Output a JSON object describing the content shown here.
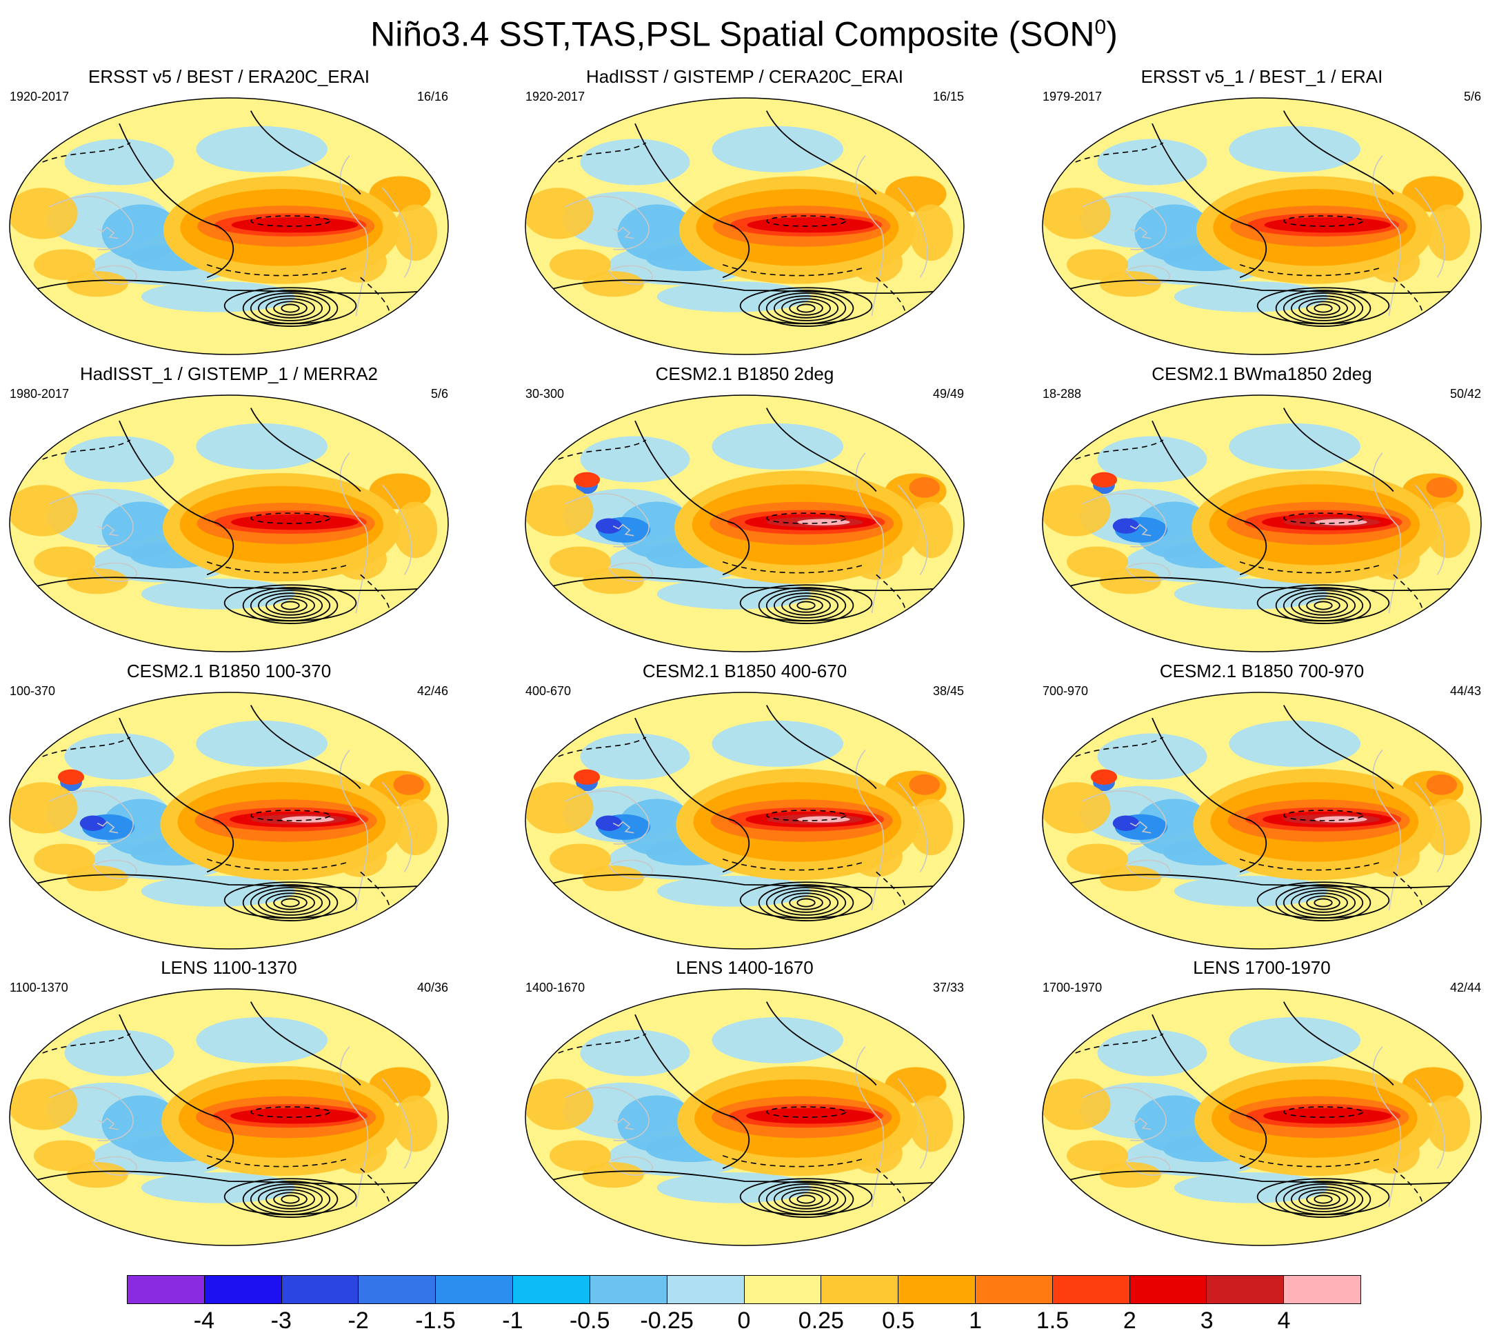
{
  "title": {
    "main": "Niño3.4 SST,TAS,PSL Spatial Composite (SON",
    "sup": "0",
    "close": ")"
  },
  "panels": [
    {
      "title": "ERSST v5 / BEST / ERA20C_ERAI",
      "years": "1920-2017",
      "count": "16/16",
      "strength": 0.75
    },
    {
      "title": "HadISST / GISTEMP / CERA20C_ERAI",
      "years": "1920-2017",
      "count": "16/15",
      "strength": 0.75
    },
    {
      "title": "ERSST v5_1 / BEST_1 / ERAI",
      "years": "1979-2017",
      "count": "5/6",
      "strength": 0.75
    },
    {
      "title": "HadISST_1 / GISTEMP_1 / MERRA2",
      "years": "1980-2017",
      "count": "5/6",
      "strength": 0.78
    },
    {
      "title": "CESM2.1 B1850 2deg",
      "years": "30-300",
      "count": "49/49",
      "strength": 1.0
    },
    {
      "title": "CESM2.1 BWma1850 2deg",
      "years": "18-288",
      "count": "50/42",
      "strength": 1.0
    },
    {
      "title": "CESM2.1 B1850 100-370",
      "years": "100-370",
      "count": "42/46",
      "strength": 0.92
    },
    {
      "title": "CESM2.1 B1850 400-670",
      "years": "400-670",
      "count": "38/45",
      "strength": 0.92
    },
    {
      "title": "CESM2.1 B1850 700-970",
      "years": "700-970",
      "count": "44/43",
      "strength": 0.92
    },
    {
      "title": "LENS 1100-1370",
      "years": "1100-1370",
      "count": "40/36",
      "strength": 0.85
    },
    {
      "title": "LENS 1400-1670",
      "years": "1400-1670",
      "count": "37/33",
      "strength": 0.85
    },
    {
      "title": "LENS 1700-1970",
      "years": "1700-1970",
      "count": "42/44",
      "strength": 0.85
    }
  ],
  "colorbar": {
    "colors": [
      "#8a2be2",
      "#1c10f0",
      "#2a45e0",
      "#3375e8",
      "#2b8ff0",
      "#0bbcf6",
      "#6cc3f0",
      "#aedff3",
      "#fff48a",
      "#fec832",
      "#ffa700",
      "#ff7a10",
      "#ff3e10",
      "#e80000",
      "#cc1e1e",
      "#ffb3b8"
    ],
    "labels": [
      "-4",
      "-3",
      "-2",
      "-1.5",
      "-1",
      "-0.5",
      "-0.25",
      "0",
      "0.25",
      "0.5",
      "1",
      "1.5",
      "2",
      "3",
      "4"
    ]
  }
}
